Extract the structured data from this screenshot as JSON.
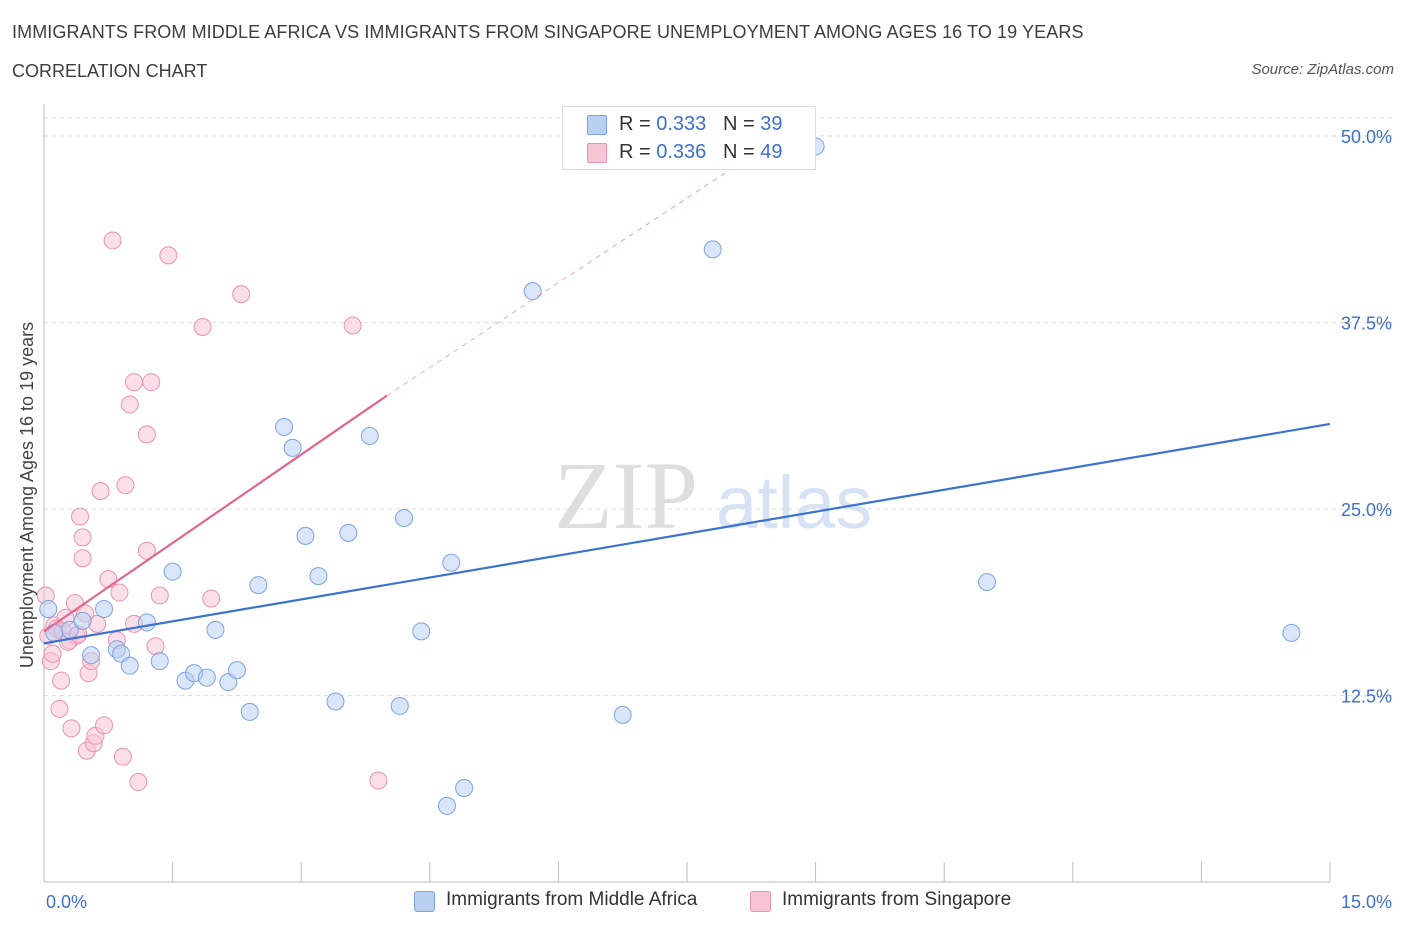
{
  "header": {
    "title": "IMMIGRANTS FROM MIDDLE AFRICA VS IMMIGRANTS FROM SINGAPORE UNEMPLOYMENT AMONG AGES 16 TO 19 YEARS",
    "subtitle": "CORRELATION CHART",
    "source": "Source: ZipAtlas.com"
  },
  "watermark": {
    "zip": "ZIP",
    "atlas": "atlas"
  },
  "colors": {
    "blue_fill": "#b9d0f3",
    "blue_stroke": "#7ea3e0",
    "blue_line": "#3b73d1",
    "pink_fill": "#f8c5d6",
    "pink_stroke": "#ea93b0",
    "pink_line": "#e2668f",
    "axis_label": "#3d6fd1",
    "grid": "#dddddd"
  },
  "legend_top": {
    "rows": [
      {
        "r_label": "R = ",
        "r_value": "0.333",
        "n_label": "N = ",
        "n_value": "39",
        "color": "#b9d0f3",
        "stroke": "#7ea3e0"
      },
      {
        "r_label": "R = ",
        "r_value": "0.336",
        "n_label": "N = ",
        "n_value": "49",
        "color": "#f8c5d6",
        "stroke": "#ea93b0"
      }
    ]
  },
  "legend_bottom": {
    "items": [
      {
        "label": "Immigrants from Middle Africa",
        "color": "#b9d0f3",
        "stroke": "#7ea3e0"
      },
      {
        "label": "Immigrants from Singapore",
        "color": "#f8c5d6",
        "stroke": "#ea93b0"
      }
    ]
  },
  "chart_data": {
    "type": "scatter",
    "title": "IMMIGRANTS FROM MIDDLE AFRICA VS IMMIGRANTS FROM SINGAPORE UNEMPLOYMENT AMONG AGES 16 TO 19 YEARS",
    "subtitle": "CORRELATION CHART",
    "xlabel": "",
    "ylabel": "Unemployment Among Ages 16 to 19 years",
    "xlim": [
      0,
      15
    ],
    "ylim": [
      0,
      50
    ],
    "x_tick_labels": [
      {
        "value": 0,
        "label": "0.0%"
      },
      {
        "value": 15,
        "label": "15.0%"
      }
    ],
    "y_tick_labels": [
      {
        "value": 12.5,
        "label": "12.5%"
      },
      {
        "value": 25,
        "label": "25.0%"
      },
      {
        "value": 37.5,
        "label": "37.5%"
      },
      {
        "value": 50,
        "label": "50.0%"
      }
    ],
    "grid": true,
    "legend_position": "top-center",
    "series": [
      {
        "name": "Immigrants from Middle Africa",
        "color": "#b9d0f3",
        "points": [
          [
            0.05,
            18.3
          ],
          [
            0.3,
            16.9
          ],
          [
            0.45,
            17.5
          ],
          [
            0.55,
            15.2
          ],
          [
            0.7,
            18.3
          ],
          [
            0.85,
            15.6
          ],
          [
            0.9,
            15.3
          ],
          [
            1.0,
            14.5
          ],
          [
            1.2,
            17.4
          ],
          [
            1.35,
            14.8
          ],
          [
            1.5,
            20.8
          ],
          [
            1.65,
            13.5
          ],
          [
            1.75,
            14.0
          ],
          [
            1.9,
            13.7
          ],
          [
            2.0,
            16.9
          ],
          [
            2.15,
            13.4
          ],
          [
            2.25,
            14.2
          ],
          [
            2.4,
            11.4
          ],
          [
            2.5,
            19.9
          ],
          [
            2.8,
            30.5
          ],
          [
            2.9,
            29.1
          ],
          [
            3.05,
            23.2
          ],
          [
            3.2,
            20.5
          ],
          [
            3.4,
            12.1
          ],
          [
            3.55,
            23.4
          ],
          [
            3.8,
            29.9
          ],
          [
            4.15,
            11.8
          ],
          [
            4.2,
            24.4
          ],
          [
            4.4,
            16.8
          ],
          [
            4.7,
            5.1
          ],
          [
            4.75,
            21.4
          ],
          [
            4.9,
            6.3
          ],
          [
            5.7,
            39.6
          ],
          [
            6.75,
            11.2
          ],
          [
            7.8,
            42.4
          ],
          [
            9.0,
            49.3
          ],
          [
            11.0,
            20.1
          ],
          [
            14.55,
            16.7
          ],
          [
            0.12,
            16.7
          ]
        ],
        "trendline": {
          "x": [
            0,
            15
          ],
          "y": [
            16.0,
            30.7
          ]
        }
      },
      {
        "name": "Immigrants from Singapore",
        "color": "#f8c5d6",
        "points": [
          [
            0.02,
            19.2
          ],
          [
            0.05,
            16.5
          ],
          [
            0.08,
            14.8
          ],
          [
            0.1,
            15.3
          ],
          [
            0.12,
            17.2
          ],
          [
            0.18,
            11.6
          ],
          [
            0.2,
            13.5
          ],
          [
            0.25,
            17.7
          ],
          [
            0.3,
            16.2
          ],
          [
            0.32,
            10.3
          ],
          [
            0.36,
            18.7
          ],
          [
            0.38,
            16.5
          ],
          [
            0.42,
            24.5
          ],
          [
            0.45,
            23.1
          ],
          [
            0.45,
            21.7
          ],
          [
            0.5,
            8.8
          ],
          [
            0.52,
            14.0
          ],
          [
            0.55,
            14.8
          ],
          [
            0.58,
            9.3
          ],
          [
            0.6,
            9.8
          ],
          [
            0.62,
            17.3
          ],
          [
            0.66,
            26.2
          ],
          [
            0.7,
            10.5
          ],
          [
            0.75,
            20.3
          ],
          [
            0.8,
            43.0
          ],
          [
            0.85,
            16.2
          ],
          [
            0.88,
            19.4
          ],
          [
            0.92,
            8.4
          ],
          [
            0.95,
            26.6
          ],
          [
            1.0,
            32.0
          ],
          [
            1.05,
            17.3
          ],
          [
            1.05,
            33.5
          ],
          [
            1.1,
            6.7
          ],
          [
            1.2,
            22.2
          ],
          [
            1.2,
            30.0
          ],
          [
            1.25,
            33.5
          ],
          [
            1.3,
            15.8
          ],
          [
            1.35,
            19.2
          ],
          [
            1.45,
            42.0
          ],
          [
            1.85,
            37.2
          ],
          [
            1.95,
            19.0
          ],
          [
            2.3,
            39.4
          ],
          [
            3.6,
            37.3
          ],
          [
            3.9,
            6.8
          ],
          [
            0.15,
            17.0
          ],
          [
            0.22,
            16.8
          ],
          [
            0.28,
            16.1
          ],
          [
            0.4,
            16.6
          ],
          [
            0.48,
            18.0
          ]
        ],
        "trendline": {
          "x": [
            0,
            4.0
          ],
          "y": [
            16.8,
            32.6
          ]
        },
        "trendline_extension": {
          "x": [
            4.0,
            8.6
          ],
          "y": [
            32.6,
            50.0
          ]
        }
      }
    ]
  }
}
